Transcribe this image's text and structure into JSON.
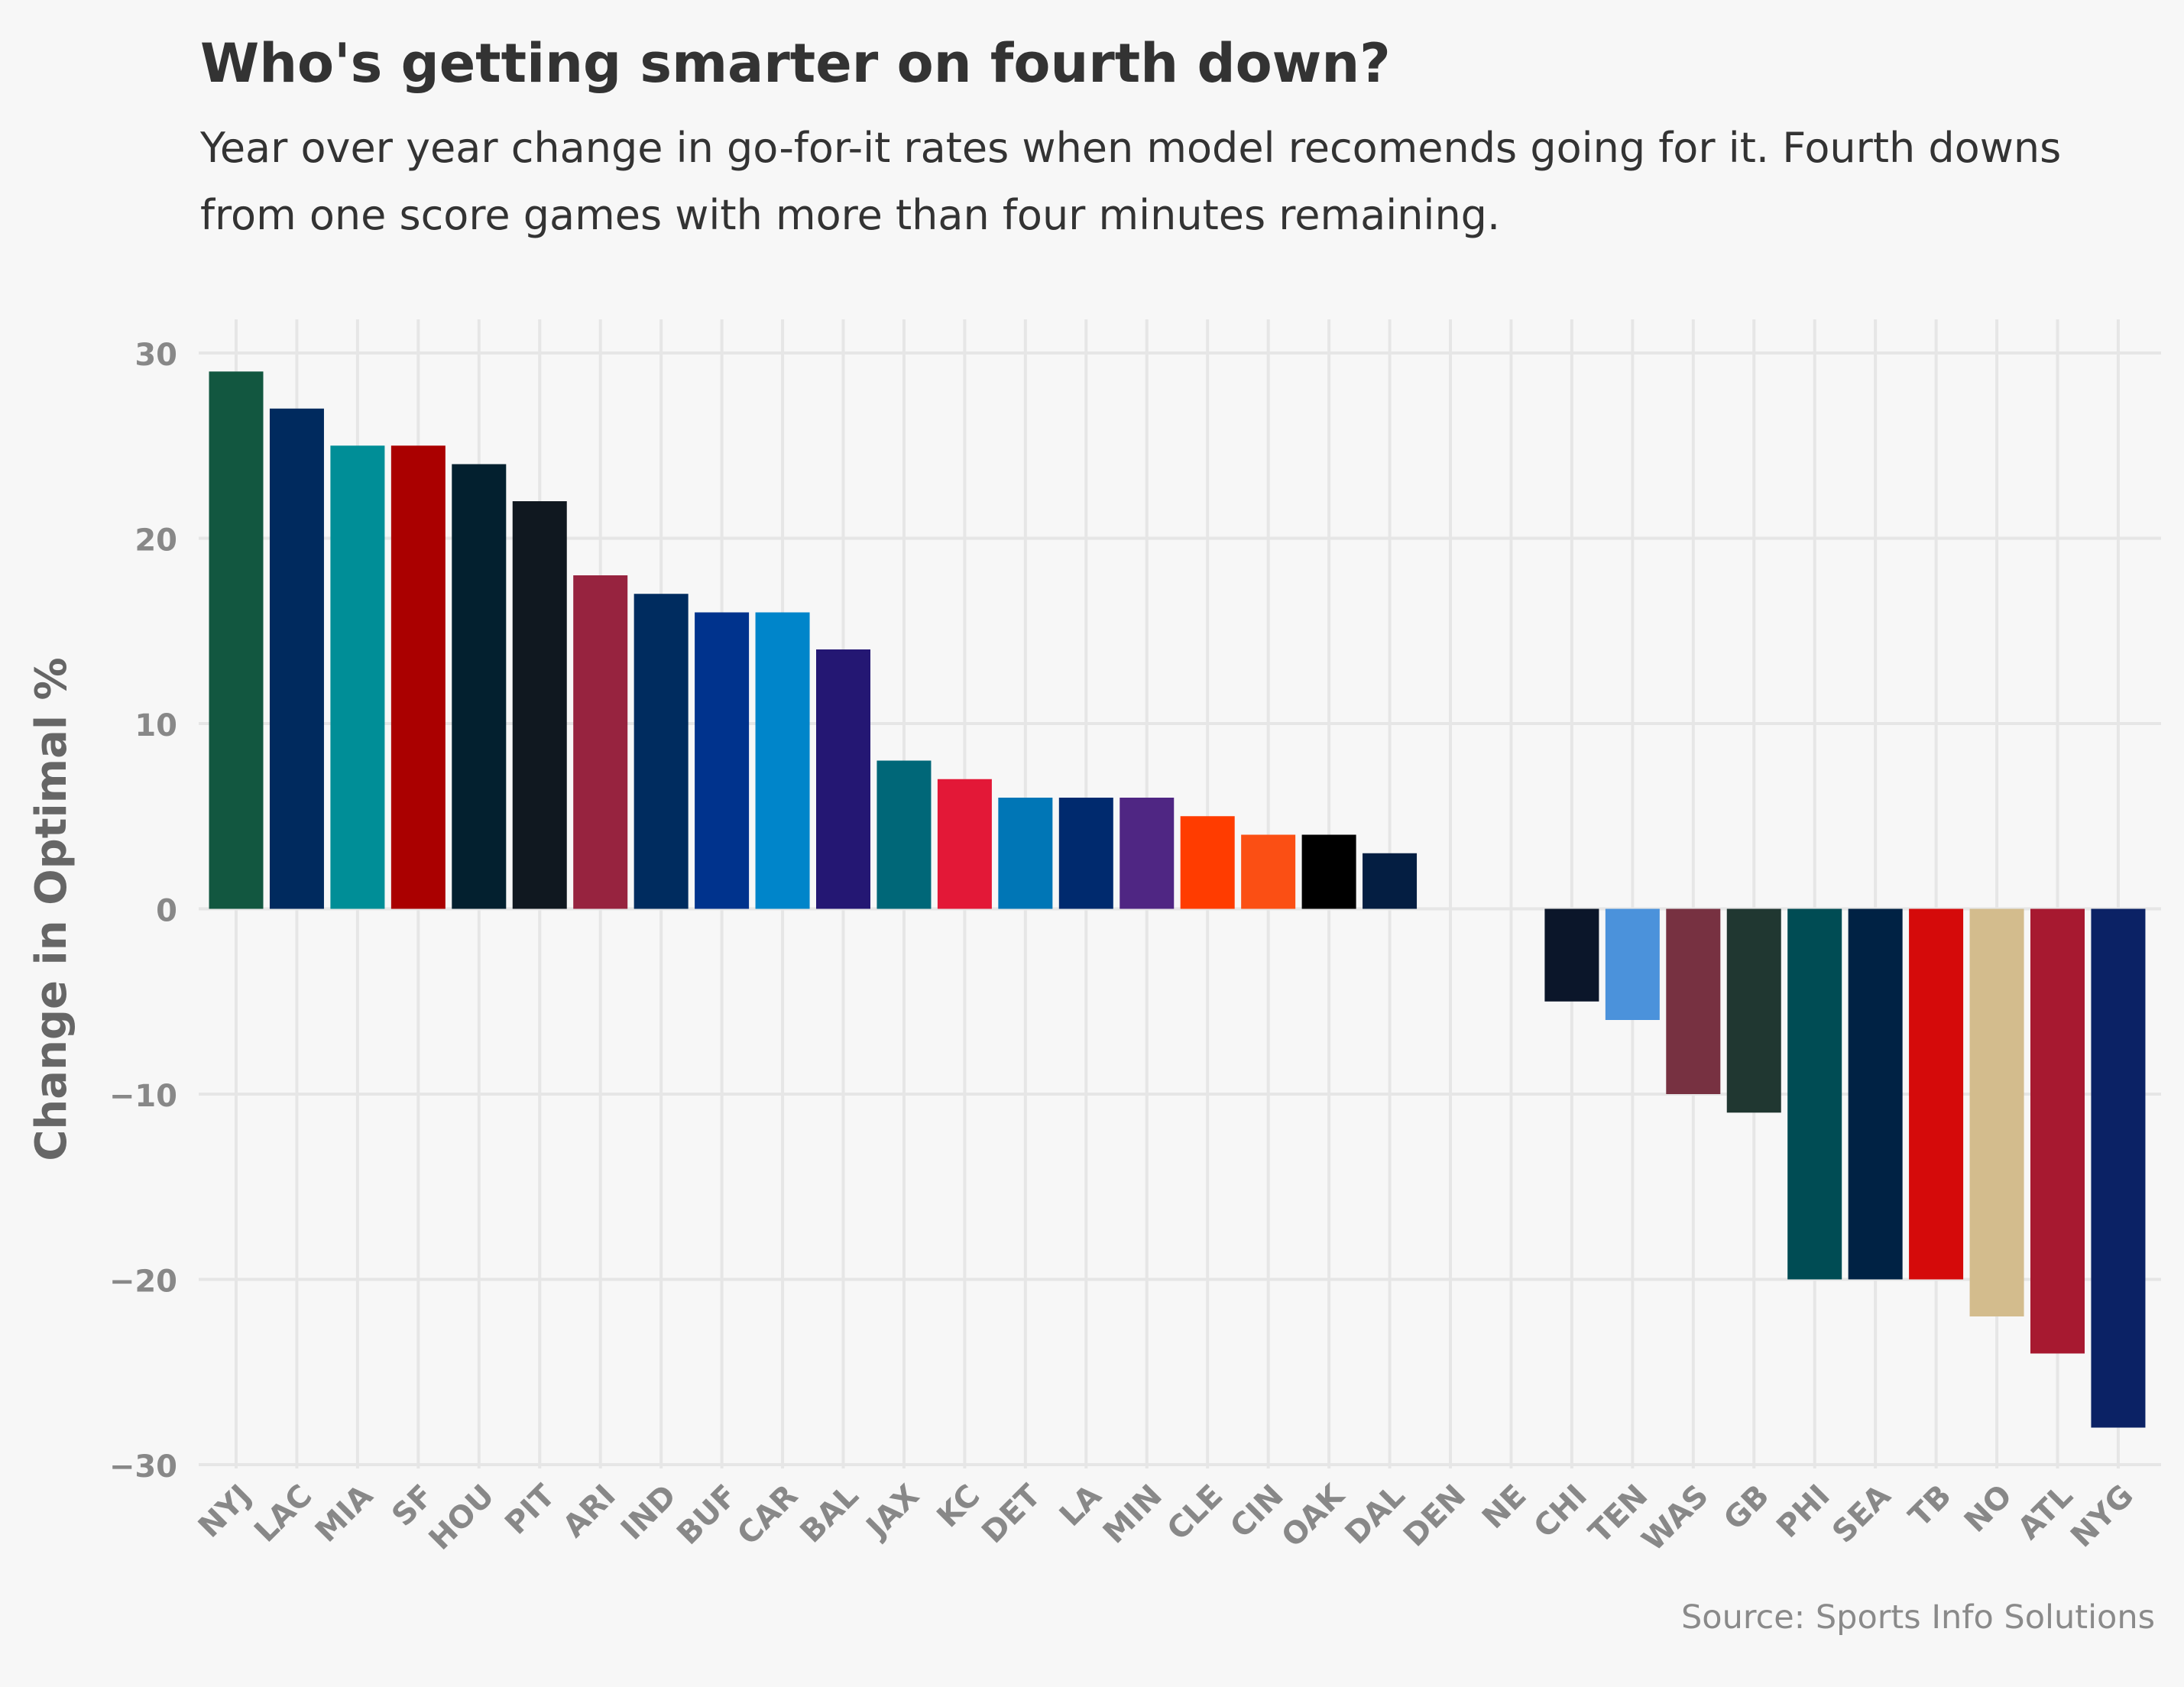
{
  "chart_data": {
    "type": "bar",
    "title": "Who's getting smarter on fourth down?",
    "subtitle": "Year over year change in go-for-it rates when model recomends going for it. Fourth downs from one score games with more than four minutes remaining.",
    "xlabel": "",
    "ylabel": "Change in Optimal %",
    "ylim": [
      -30,
      30
    ],
    "yticks": [
      30,
      20,
      10,
      0,
      -10,
      -20,
      -30
    ],
    "grid": true,
    "categories": [
      "NYJ",
      "LAC",
      "MIA",
      "SF",
      "HOU",
      "PIT",
      "ARI",
      "IND",
      "BUF",
      "CAR",
      "BAL",
      "JAX",
      "KC",
      "DET",
      "LA",
      "MIN",
      "CLE",
      "CIN",
      "OAK",
      "DAL",
      "DEN",
      "NE",
      "CHI",
      "TEN",
      "WAS",
      "GB",
      "PHI",
      "SEA",
      "TB",
      "NO",
      "ATL",
      "NYG"
    ],
    "values": [
      29,
      27,
      25,
      25,
      24,
      22,
      18,
      17,
      16,
      16,
      14,
      8,
      7,
      6,
      6,
      6,
      5,
      4,
      4,
      3,
      0,
      0,
      -5,
      -6,
      -10,
      -11,
      -20,
      -20,
      -20,
      -22,
      -24,
      -28
    ],
    "colors": [
      "#125740",
      "#002a5e",
      "#008e97",
      "#aa0000",
      "#03202f",
      "#101820",
      "#97233f",
      "#002c5f",
      "#00338d",
      "#0085ca",
      "#241773",
      "#006778",
      "#e31837",
      "#0076b6",
      "#002a6e",
      "#4f2683",
      "#ff3c00",
      "#fb4f14",
      "#000000",
      "#041e42",
      "#fb4f14",
      "#002244",
      "#0b162a",
      "#4b92db",
      "#773141",
      "#203731",
      "#004c54",
      "#002244",
      "#d50a0a",
      "#d3bc8d",
      "#a71930",
      "#0b2265"
    ]
  },
  "source": "Source: Sports Info Solutions"
}
